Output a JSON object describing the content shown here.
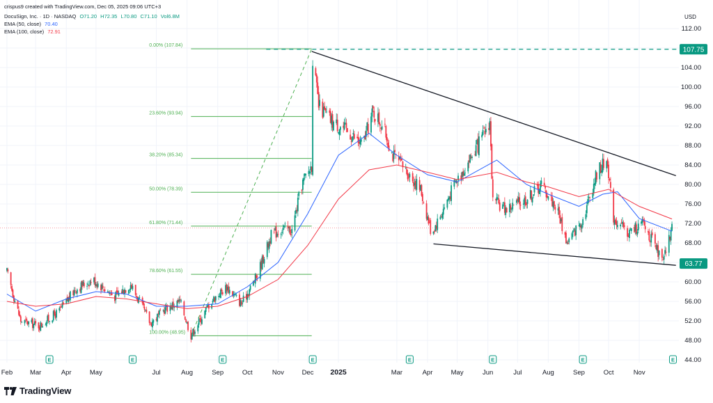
{
  "header": {
    "creator": "crispus9 created with TradingView.com, Dec 05, 2025 09:06 UTC+3",
    "title": "DocuSign, Inc. · 1D · NASDAQ",
    "open": "O71.20",
    "high": "H72.35",
    "low": "L70.80",
    "close": "C71.10",
    "volume": "Vol6.8M",
    "ema50_label": "EMA (50, close)",
    "ema50_value": "70.40",
    "ema100_label": "EMA (100, close)",
    "ema100_value": "72.91"
  },
  "currency": "USD",
  "logo_text": "TradingView",
  "colors": {
    "up": "#089981",
    "down": "#f23645",
    "ema50": "#2962ff",
    "ema100": "#f23645",
    "fib": "#4caf50",
    "badge": "#089981"
  },
  "chart_data": {
    "type": "candlestick",
    "title": "DocuSign, Inc. · 1D · NASDAQ",
    "ylim": [
      44,
      112
    ],
    "y_ticks": [
      44.0,
      48.0,
      52.0,
      56.0,
      60.0,
      64.0,
      68.0,
      72.0,
      76.0,
      80.0,
      84.0,
      88.0,
      92.0,
      96.0,
      100.0,
      104.0,
      108.0,
      112.0
    ],
    "x_ticks": [
      "Feb",
      "Mar",
      "Apr",
      "May",
      "Jul",
      "Aug",
      "Sep",
      "Oct",
      "Nov",
      "Dec",
      "2025",
      "Mar",
      "Apr",
      "May",
      "Jun",
      "Jul",
      "Aug",
      "Sep",
      "Oct",
      "Nov"
    ],
    "price_path": [
      [
        "2024-02-01",
        62.0
      ],
      [
        "2024-02-15",
        52.0
      ],
      [
        "2024-03-05",
        51.0
      ],
      [
        "2024-03-25",
        54.0
      ],
      [
        "2024-04-10",
        58.5
      ],
      [
        "2024-04-28",
        60.5
      ],
      [
        "2024-05-20",
        57.0
      ],
      [
        "2024-06-05",
        59.5
      ],
      [
        "2024-06-25",
        51.5
      ],
      [
        "2024-07-10",
        54.5
      ],
      [
        "2024-07-25",
        56.0
      ],
      [
        "2024-08-05",
        49.0
      ],
      [
        "2024-08-25",
        56.0
      ],
      [
        "2024-09-10",
        59.0
      ],
      [
        "2024-09-25",
        55.5
      ],
      [
        "2024-10-10",
        61.0
      ],
      [
        "2024-10-25",
        69.5
      ],
      [
        "2024-11-05",
        71.0
      ],
      [
        "2024-11-15",
        70.5
      ],
      [
        "2024-11-25",
        80.0
      ],
      [
        "2024-12-05",
        84.0
      ],
      [
        "2024-12-06",
        106.0
      ],
      [
        "2024-12-12",
        96.0
      ],
      [
        "2024-12-25",
        93.0
      ],
      [
        "2025-01-10",
        91.0
      ],
      [
        "2025-01-25",
        88.0
      ],
      [
        "2025-02-05",
        95.0
      ],
      [
        "2025-02-15",
        92.0
      ],
      [
        "2025-02-25",
        86.0
      ],
      [
        "2025-03-10",
        83.0
      ],
      [
        "2025-03-25",
        79.0
      ],
      [
        "2025-04-05",
        70.0
      ],
      [
        "2025-04-15",
        74.0
      ],
      [
        "2025-04-28",
        80.0
      ],
      [
        "2025-05-10",
        84.0
      ],
      [
        "2025-05-25",
        89.0
      ],
      [
        "2025-06-03",
        93.0
      ],
      [
        "2025-06-06",
        76.5
      ],
      [
        "2025-06-20",
        75.0
      ],
      [
        "2025-07-10",
        77.0
      ],
      [
        "2025-07-25",
        80.0
      ],
      [
        "2025-08-10",
        75.0
      ],
      [
        "2025-08-20",
        68.0
      ],
      [
        "2025-09-05",
        73.0
      ],
      [
        "2025-09-20",
        83.0
      ],
      [
        "2025-09-30",
        85.0
      ],
      [
        "2025-10-05",
        73.5
      ],
      [
        "2025-10-20",
        70.0
      ],
      [
        "2025-11-05",
        72.0
      ],
      [
        "2025-11-15",
        68.0
      ],
      [
        "2025-11-25",
        64.0
      ],
      [
        "2025-12-04",
        71.1
      ]
    ],
    "ema50_path": [
      [
        "2024-02-01",
        57.5
      ],
      [
        "2024-03-01",
        54.0
      ],
      [
        "2024-04-01",
        56.5
      ],
      [
        "2024-05-01",
        58.0
      ],
      [
        "2024-06-01",
        57.5
      ],
      [
        "2024-07-01",
        55.0
      ],
      [
        "2024-08-01",
        55.0
      ],
      [
        "2024-09-01",
        55.5
      ],
      [
        "2024-10-01",
        59.0
      ],
      [
        "2024-11-01",
        64.0
      ],
      [
        "2024-12-01",
        74.0
      ],
      [
        "2025-01-01",
        86.0
      ],
      [
        "2025-02-01",
        90.5
      ],
      [
        "2025-03-01",
        86.0
      ],
      [
        "2025-04-01",
        82.0
      ],
      [
        "2025-05-01",
        80.5
      ],
      [
        "2025-06-10",
        85.0
      ],
      [
        "2025-07-10",
        80.0
      ],
      [
        "2025-08-01",
        78.0
      ],
      [
        "2025-09-01",
        75.5
      ],
      [
        "2025-09-25",
        78.0
      ],
      [
        "2025-10-10",
        78.5
      ],
      [
        "2025-11-01",
        73.0
      ],
      [
        "2025-12-04",
        70.4
      ]
    ],
    "ema100_path": [
      [
        "2024-02-01",
        56.0
      ],
      [
        "2024-03-01",
        55.0
      ],
      [
        "2024-04-01",
        55.5
      ],
      [
        "2024-05-01",
        57.0
      ],
      [
        "2024-06-01",
        56.5
      ],
      [
        "2024-07-01",
        55.5
      ],
      [
        "2024-08-01",
        54.5
      ],
      [
        "2024-09-01",
        55.0
      ],
      [
        "2024-10-01",
        57.0
      ],
      [
        "2024-11-01",
        60.5
      ],
      [
        "2024-12-01",
        67.5
      ],
      [
        "2025-01-01",
        77.0
      ],
      [
        "2025-02-01",
        83.0
      ],
      [
        "2025-03-01",
        84.0
      ],
      [
        "2025-04-01",
        82.5
      ],
      [
        "2025-05-01",
        81.0
      ],
      [
        "2025-06-10",
        82.5
      ],
      [
        "2025-07-10",
        80.5
      ],
      [
        "2025-08-01",
        79.5
      ],
      [
        "2025-09-01",
        77.5
      ],
      [
        "2025-10-01",
        79.0
      ],
      [
        "2025-11-01",
        75.5
      ],
      [
        "2025-12-04",
        72.91
      ]
    ],
    "fib_levels": [
      {
        "label": "0.00% (107.84)",
        "value": 107.84
      },
      {
        "label": "23.60% (93.94)",
        "value": 93.94
      },
      {
        "label": "38.20% (85.34)",
        "value": 85.34
      },
      {
        "label": "50.00% (78.39)",
        "value": 78.39
      },
      {
        "label": "61.80% (71.44)",
        "value": 71.44
      },
      {
        "label": "78.60% (61.55)",
        "value": 61.55
      },
      {
        "label": "100.00% (48.95)",
        "value": 48.95
      }
    ],
    "fib_range": [
      "2024-08-05",
      "2024-12-05"
    ],
    "resistance_trendline": [
      [
        "2024-12-05",
        107.3
      ],
      [
        "2025-12-08",
        81.8
      ]
    ],
    "support_trendline": [
      [
        "2025-04-07",
        67.8
      ],
      [
        "2025-12-08",
        63.4
      ]
    ],
    "dashed_high_level": 107.75,
    "current_price": 71.1,
    "price_badges": [
      {
        "label": "107.75",
        "value": 107.75
      },
      {
        "label": "63.77",
        "value": 63.77
      }
    ],
    "earnings_markers": [
      "2024-03-15",
      "2024-06-07",
      "2024-09-06",
      "2024-12-06",
      "2025-03-14",
      "2025-06-06",
      "2025-09-05",
      "2025-12-05"
    ],
    "earnings_label": "E"
  }
}
